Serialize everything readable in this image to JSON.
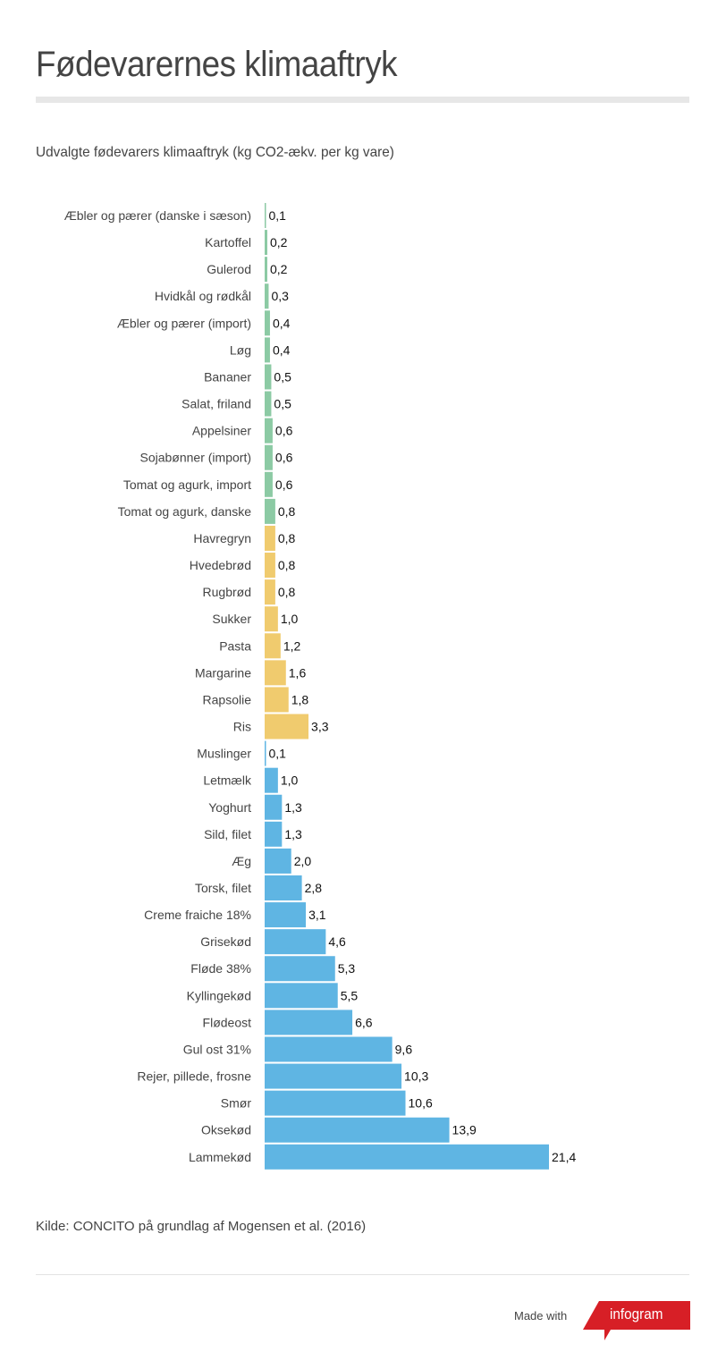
{
  "header": {
    "title": "Fødevarernes klimaaftryk"
  },
  "chart_data": {
    "type": "bar",
    "orientation": "horizontal",
    "title": "Udvalgte fødevarers klimaaftryk (kg CO2-ækv. per kg vare)",
    "xlabel": "",
    "ylabel": "",
    "xlim": [
      0,
      21.4
    ],
    "grid": false,
    "legend": "none",
    "decimal_separator": ",",
    "group_colors": {
      "vegetables_fruit": "#8ccaa4",
      "grains_oils": "#f0cb6e",
      "animal_products": "#5fb5e3"
    },
    "categories": [
      "Æbler og pærer (danske i sæson)",
      "Kartoffel",
      "Gulerod",
      "Hvidkål og rødkål",
      "Æbler og pærer (import)",
      "Løg",
      "Bananer",
      "Salat, friland",
      "Appelsiner",
      "Sojabønner (import)",
      "Tomat og agurk, import",
      "Tomat og agurk, danske",
      "Havregryn",
      "Hvedebrød",
      "Rugbrød",
      "Sukker",
      "Pasta",
      "Margarine",
      "Rapsolie",
      "Ris",
      "Muslinger",
      "Letmælk",
      "Yoghurt",
      "Sild, filet",
      "Æg",
      "Torsk, filet",
      "Creme fraiche 18%",
      "Grisekød",
      "Fløde 38%",
      "Kyllingekød",
      "Flødeost",
      "Gul ost 31%",
      "Rejer, pillede, frosne",
      "Smør",
      "Oksekød",
      "Lammekød"
    ],
    "values": [
      0.1,
      0.2,
      0.2,
      0.3,
      0.4,
      0.4,
      0.5,
      0.5,
      0.6,
      0.6,
      0.6,
      0.8,
      0.8,
      0.8,
      0.8,
      1.0,
      1.2,
      1.6,
      1.8,
      3.3,
      0.1,
      1.0,
      1.3,
      1.3,
      2.0,
      2.8,
      3.1,
      4.6,
      5.3,
      5.5,
      6.6,
      9.6,
      10.3,
      10.6,
      13.9,
      21.4
    ],
    "value_labels": [
      "0,1",
      "0,2",
      "0,2",
      "0,3",
      "0,4",
      "0,4",
      "0,5",
      "0,5",
      "0,6",
      "0,6",
      "0,6",
      "0,8",
      "0,8",
      "0,8",
      "0,8",
      "1,0",
      "1,2",
      "1,6",
      "1,8",
      "3,3",
      "0,1",
      "1,0",
      "1,3",
      "1,3",
      "2,0",
      "2,8",
      "3,1",
      "4,6",
      "5,3",
      "5,5",
      "6,6",
      "9,6",
      "10,3",
      "10,6",
      "13,9",
      "21,4"
    ],
    "groups": [
      "vegetables_fruit",
      "vegetables_fruit",
      "vegetables_fruit",
      "vegetables_fruit",
      "vegetables_fruit",
      "vegetables_fruit",
      "vegetables_fruit",
      "vegetables_fruit",
      "vegetables_fruit",
      "vegetables_fruit",
      "vegetables_fruit",
      "vegetables_fruit",
      "grains_oils",
      "grains_oils",
      "grains_oils",
      "grains_oils",
      "grains_oils",
      "grains_oils",
      "grains_oils",
      "grains_oils",
      "animal_products",
      "animal_products",
      "animal_products",
      "animal_products",
      "animal_products",
      "animal_products",
      "animal_products",
      "animal_products",
      "animal_products",
      "animal_products",
      "animal_products",
      "animal_products",
      "animal_products",
      "animal_products",
      "animal_products",
      "animal_products"
    ]
  },
  "footer": {
    "source": "Kilde: CONCITO på grundlag af Mogensen et al. (2016)",
    "made_with": "Made with",
    "brand": "infogram",
    "brand_color": "#d71f26"
  }
}
